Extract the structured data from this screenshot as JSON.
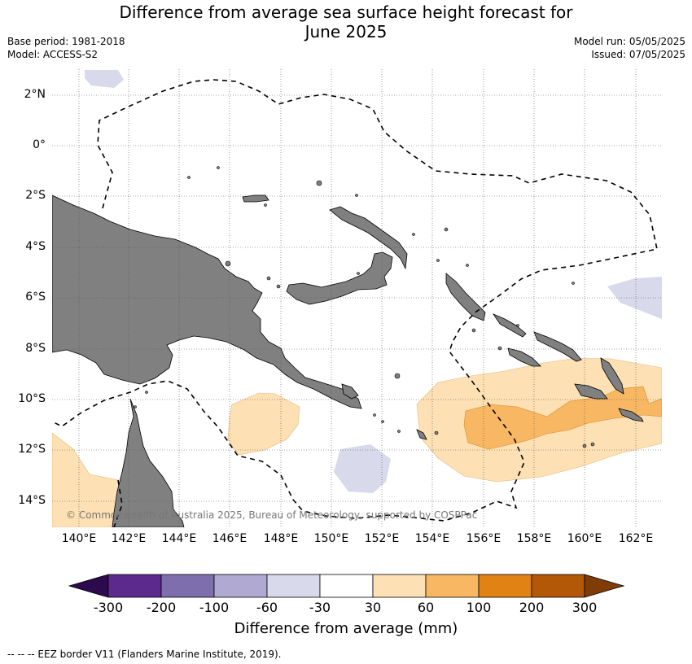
{
  "title_line1": "Difference from average sea surface height forecast for",
  "title_line2": "June 2025",
  "base_period": "Base period: 1981-2018",
  "model": "Model: ACCESS-S2",
  "model_run": "Model run: 05/05/2025",
  "issued": "Issued: 07/05/2025",
  "latitudes": [
    "2°N",
    "0°",
    "2°S",
    "4°S",
    "6°S",
    "8°S",
    "10°S",
    "12°S",
    "14°S"
  ],
  "longitudes": [
    "140°E",
    "142°E",
    "144°E",
    "146°E",
    "148°E",
    "150°E",
    "152°E",
    "154°E",
    "156°E",
    "158°E",
    "160°E",
    "162°E"
  ],
  "colorbar": {
    "label": "Difference from average (mm)",
    "ticks": [
      "-300",
      "-200",
      "-100",
      "-60",
      "-30",
      "30",
      "60",
      "100",
      "200",
      "300"
    ],
    "colors": [
      "#2d0a4e",
      "#5b2a8c",
      "#7f6ead",
      "#b0a9d2",
      "#d8d9ea",
      "#ffffff",
      "#fde0b3",
      "#f8b762",
      "#e08214",
      "#b35806",
      "#7f3b08"
    ]
  },
  "copyright": "© Commonwealth of Australia 2025, Bureau of Meteorology, supported by COSPPac",
  "footer": "--  --  -- EEZ border V11 (Flanders Marine Institute, 2019).",
  "colors": {
    "land": "#808080",
    "grid": "#555555",
    "eez": "#000000"
  }
}
